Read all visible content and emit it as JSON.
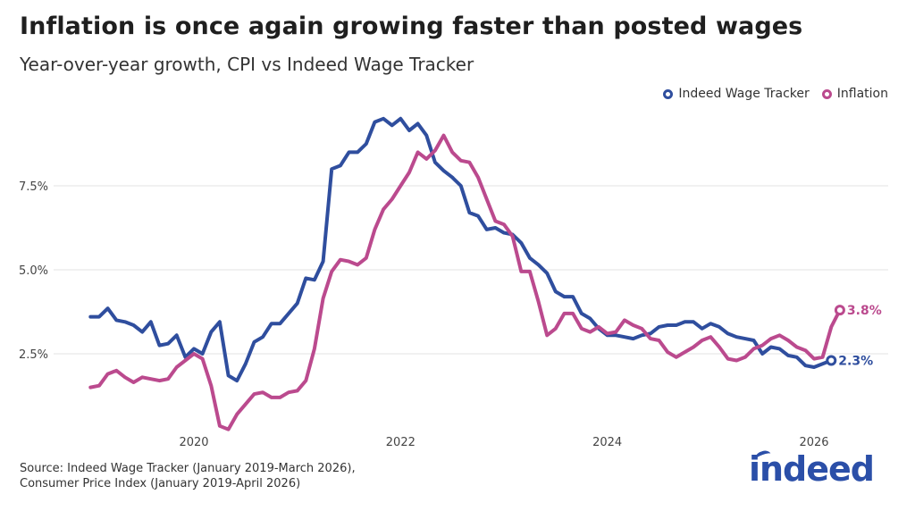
{
  "chart_data": {
    "type": "line",
    "title": "Inflation is once again growing faster than posted wages",
    "subtitle": "Year-over-year growth, CPI vs Indeed Wage Tracker",
    "ytick_labels": [
      "2.5%",
      "5.0%",
      "7.5%"
    ],
    "yticks": [
      2.5,
      5.0,
      7.5
    ],
    "xtick_labels": [
      "2020",
      "2022",
      "2024",
      "2026"
    ],
    "xticks": [
      2020,
      2022,
      2024,
      2026
    ],
    "ylim": [
      0,
      10
    ],
    "xlim": [
      2018.9,
      2026.75
    ],
    "grid": "horizontal",
    "legend_position": "top-right",
    "series": [
      {
        "name": "Indeed Wage Tracker",
        "color": "#2f4e9e",
        "start": "2019-01",
        "values": [
          3.6,
          3.6,
          3.85,
          3.5,
          3.45,
          3.35,
          3.15,
          3.45,
          2.75,
          2.8,
          3.05,
          2.4,
          2.65,
          2.5,
          3.15,
          3.45,
          1.85,
          1.7,
          2.2,
          2.85,
          3.0,
          3.4,
          3.4,
          3.7,
          4.0,
          4.75,
          4.7,
          5.25,
          8.0,
          8.1,
          8.5,
          8.5,
          8.75,
          9.4,
          9.5,
          9.3,
          9.5,
          9.15,
          9.35,
          9.0,
          8.2,
          7.95,
          7.75,
          7.5,
          6.7,
          6.6,
          6.2,
          6.25,
          6.1,
          6.05,
          5.8,
          5.35,
          5.15,
          4.9,
          4.35,
          4.2,
          4.2,
          3.7,
          3.55,
          3.25,
          3.05,
          3.05,
          3.0,
          2.95,
          3.05,
          3.1,
          3.3,
          3.35,
          3.35,
          3.45,
          3.45,
          3.25,
          3.4,
          3.3,
          3.1,
          3.0,
          2.95,
          2.9,
          2.5,
          2.7,
          2.65,
          2.45,
          2.4,
          2.15,
          2.1,
          2.2,
          2.3
        ],
        "end_label": "2.3%"
      },
      {
        "name": "Inflation",
        "color": "#bb4a8e",
        "start": "2019-01",
        "values": [
          1.5,
          1.55,
          1.9,
          2.0,
          1.8,
          1.65,
          1.8,
          1.75,
          1.7,
          1.75,
          2.1,
          2.3,
          2.5,
          2.35,
          1.55,
          0.35,
          0.25,
          0.7,
          1.0,
          1.3,
          1.35,
          1.2,
          1.2,
          1.35,
          1.4,
          1.7,
          2.65,
          4.15,
          4.95,
          5.3,
          5.25,
          5.15,
          5.35,
          6.2,
          6.8,
          7.1,
          7.5,
          7.9,
          8.5,
          8.3,
          8.55,
          9.0,
          8.5,
          8.25,
          8.2,
          7.75,
          7.1,
          6.45,
          6.35,
          6.0,
          4.95,
          4.95,
          4.05,
          3.05,
          3.25,
          3.7,
          3.7,
          3.25,
          3.15,
          3.3,
          3.1,
          3.15,
          3.5,
          3.35,
          3.25,
          2.95,
          2.9,
          2.55,
          2.4,
          2.55,
          2.7,
          2.9,
          3.0,
          2.7,
          2.35,
          2.3,
          2.4,
          2.65,
          2.75,
          2.95,
          3.05,
          2.9,
          2.7,
          2.6,
          2.35,
          2.4,
          3.3,
          3.8
        ],
        "end_label": "3.8%"
      }
    ]
  },
  "source": {
    "line1": "Source: Indeed Wage Tracker (January 2019-March 2026),",
    "line2": "Consumer Price Index (January 2019-April 2026)"
  },
  "logo_text": "indeed"
}
